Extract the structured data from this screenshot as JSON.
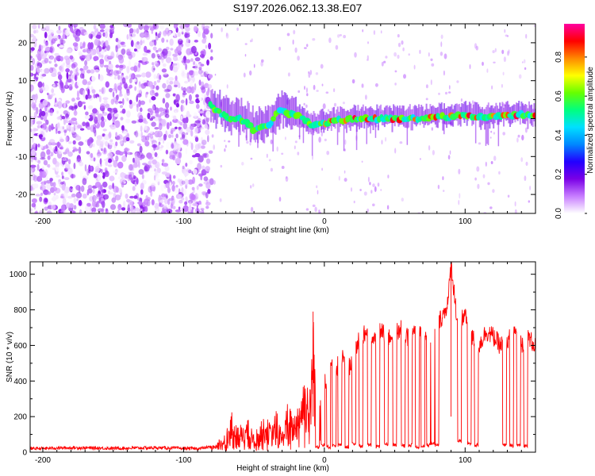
{
  "figure": {
    "title": "S197.2026.062.13.38.E07"
  },
  "chart_data": [
    {
      "type": "heatmap",
      "name": "spectrogram",
      "xlabel": "Height of straight line (km)",
      "ylabel": "Frequency (Hz)",
      "xlim": [
        -209,
        150
      ],
      "ylim": [
        -25,
        25
      ],
      "xticks": [
        -200,
        -100,
        0,
        100
      ],
      "yticks": [
        -20,
        -10,
        0,
        10,
        20
      ],
      "noise_region_end_km": -80,
      "signal_ridge": {
        "x": [
          -81,
          -78,
          -74,
          -70,
          -66,
          -62,
          -58,
          -54,
          -50,
          -46,
          -42,
          -38,
          -34,
          -30,
          -26,
          -22,
          -18,
          -14,
          -10,
          -6,
          -2,
          2,
          10,
          20,
          30,
          40,
          50,
          60,
          70,
          80,
          90,
          100,
          110,
          120,
          130,
          140,
          150
        ],
        "y": [
          3.5,
          2.5,
          1.5,
          0.5,
          -0.5,
          0.5,
          -0.5,
          -1.5,
          -3,
          -2.5,
          -2,
          -1,
          1.5,
          2.5,
          1,
          1.5,
          0.5,
          -0.5,
          -1.5,
          -1.5,
          -1,
          -1,
          -0.5,
          0,
          0,
          0,
          0,
          0,
          0,
          0.5,
          0.5,
          1,
          0.5,
          0.5,
          1,
          1,
          0.5
        ]
      },
      "colorbar": {
        "label": "Normalized spectral amplitude",
        "range": [
          0,
          0.97
        ],
        "ticks": [
          0.0,
          0.2,
          0.4,
          0.6,
          0.8
        ],
        "colors": [
          "#ffffff",
          "#c77dff",
          "#7a00e6",
          "#2200ff",
          "#0088ff",
          "#00e0ff",
          "#00ff80",
          "#66ff00",
          "#ffff00",
          "#ff8800",
          "#ff0000",
          "#ff00a0"
        ]
      }
    },
    {
      "type": "line",
      "name": "snr",
      "xlabel": "Height of straight line (km)",
      "ylabel": "SNR (10 * v/v)",
      "xlim": [
        -209,
        150
      ],
      "ylim": [
        0,
        1070
      ],
      "xticks": [
        -200,
        -100,
        0,
        100
      ],
      "yticks": [
        0,
        200,
        400,
        600,
        800,
        1000
      ],
      "color": "#ff0000",
      "series": [
        {
          "name": "SNR envelope",
          "x": [
            -209,
            -180,
            -150,
            -120,
            -90,
            -80,
            -75,
            -70,
            -66,
            -62,
            -58,
            -54,
            -50,
            -46,
            -42,
            -38,
            -34,
            -30,
            -26,
            -22,
            -18,
            -14,
            -10,
            -8,
            -6,
            -4,
            -2,
            0,
            2,
            4,
            6,
            8,
            10,
            14,
            18,
            22,
            26,
            30,
            35,
            40,
            45,
            50,
            55,
            60,
            65,
            70,
            75,
            80,
            85,
            88,
            90,
            95,
            100,
            105,
            110,
            115,
            120,
            125,
            130,
            135,
            140,
            145,
            150
          ],
          "y": [
            20,
            25,
            22,
            25,
            20,
            30,
            70,
            100,
            200,
            120,
            150,
            160,
            90,
            140,
            180,
            140,
            210,
            100,
            250,
            180,
            270,
            400,
            320,
            790,
            300,
            200,
            380,
            420,
            300,
            450,
            520,
            400,
            530,
            520,
            480,
            600,
            630,
            680,
            620,
            690,
            640,
            670,
            690,
            640,
            700,
            660,
            650,
            720,
            780,
            850,
            1060,
            700,
            780,
            640,
            600,
            680,
            650,
            600,
            620,
            680,
            610,
            640,
            600
          ]
        },
        {
          "name": "dropouts",
          "x": [
            -5,
            -1,
            3,
            7,
            11,
            16,
            21,
            26,
            32,
            38,
            44,
            50,
            56,
            61,
            66,
            70,
            74,
            77,
            80,
            96,
            103,
            108,
            128,
            133,
            138,
            143
          ],
          "y": [
            30,
            40,
            30,
            35,
            40,
            30,
            45,
            35,
            40,
            30,
            45,
            40,
            35,
            40,
            30,
            35,
            40,
            50,
            40,
            60,
            50,
            40,
            40,
            35,
            40,
            35
          ]
        }
      ]
    }
  ]
}
